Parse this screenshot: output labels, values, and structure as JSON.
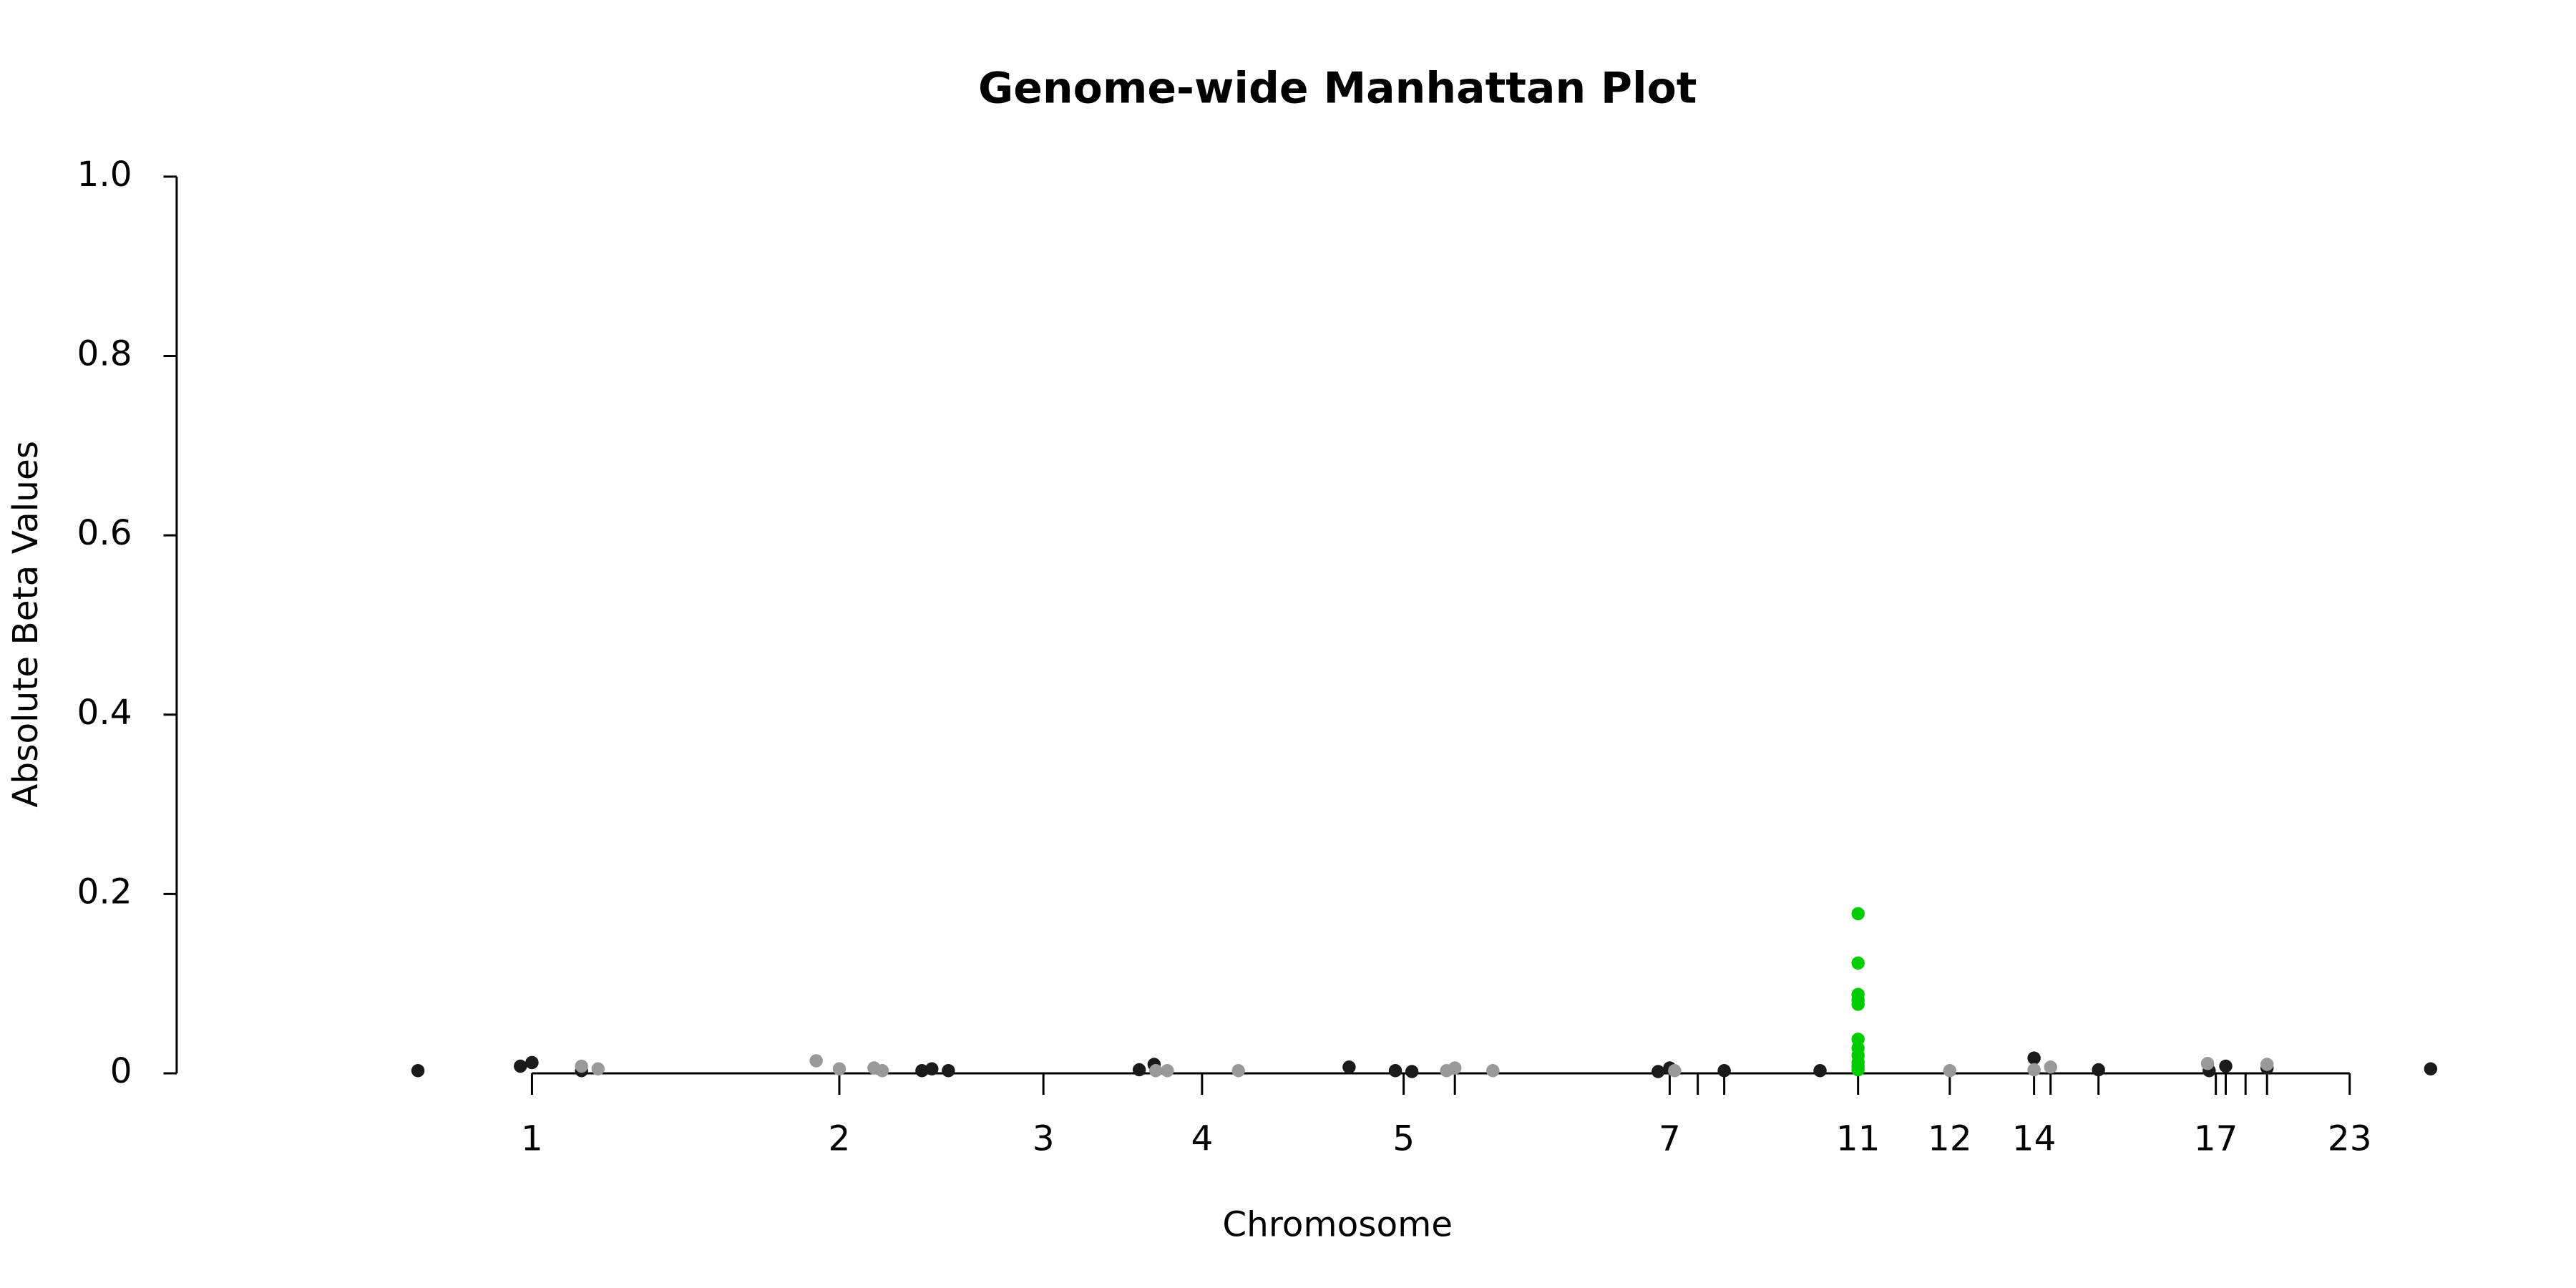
{
  "chart_data": {
    "type": "scatter",
    "title": "Genome-wide Manhattan Plot",
    "x_label": "Chromosome",
    "y_label": "Absolute Beta Values",
    "xlim": [
      -3.3,
      24.74
    ],
    "ylim": [
      0,
      1.0
    ],
    "xticks": [
      {
        "value": 1,
        "label": "1"
      },
      {
        "value": 4.72,
        "label": "2"
      },
      {
        "value": 7.19,
        "label": "3"
      },
      {
        "value": 9.11,
        "label": "4"
      },
      {
        "value": 11.55,
        "label": "5"
      },
      {
        "value": 12.17,
        "label": null
      },
      {
        "value": 14.77,
        "label": "7"
      },
      {
        "value": 15.11,
        "label": null
      },
      {
        "value": 15.43,
        "label": null
      },
      {
        "value": 17.05,
        "label": "11"
      },
      {
        "value": 18.16,
        "label": "12"
      },
      {
        "value": 19.18,
        "label": "14"
      },
      {
        "value": 19.38,
        "label": null
      },
      {
        "value": 19.96,
        "label": null
      },
      {
        "value": 21.38,
        "label": "17"
      },
      {
        "value": 21.5,
        "label": null
      },
      {
        "value": 21.74,
        "label": null
      },
      {
        "value": 22.0,
        "label": null
      },
      {
        "value": 23,
        "label": "23"
      }
    ],
    "yticks": [
      0,
      0.2,
      0.4,
      0.6,
      0.8,
      {
        "value": 1.0,
        "label": "1.0"
      }
    ],
    "series": [
      {
        "color": "#1a1a1a",
        "x": [
          -0.38,
          0.86,
          1,
          1.6,
          5.72,
          5.84,
          6.04,
          8.35,
          8.53,
          10.89,
          11.45,
          11.65,
          14.63,
          14.77,
          15.43,
          16.59,
          19.18,
          19.96,
          21.3,
          21.5,
          22.0,
          23.98
        ],
        "values": [
          0.003,
          0.008,
          0.012,
          0.003,
          0.003,
          0.005,
          0.003,
          0.004,
          0.01,
          0.007,
          0.003,
          0.002,
          0.002,
          0.006,
          0.003,
          0.003,
          0.017,
          0.004,
          0.003,
          0.008,
          0.006,
          0.005
        ]
      },
      {
        "color": "#999999",
        "x": [
          1.6,
          1.8,
          4.44,
          4.72,
          5.14,
          5.24,
          8.55,
          8.69,
          9.55,
          12.07,
          12.17,
          12.63,
          14.83,
          18.16,
          19.18,
          19.38,
          21.28,
          22.0
        ],
        "values": [
          0.008,
          0.005,
          0.014,
          0.005,
          0.006,
          0.003,
          0.003,
          0.003,
          0.003,
          0.003,
          0.006,
          0.003,
          0.003,
          0.003,
          0.004,
          0.007,
          0.011,
          0.01
        ]
      },
      {
        "color": "#00cc00",
        "x": [
          17.05,
          17.05,
          17.05,
          17.05,
          17.05,
          17.05,
          17.05,
          17.05,
          17.05,
          17.05,
          17.05
        ],
        "values": [
          0.178,
          0.123,
          0.088,
          0.082,
          0.077,
          0.038,
          0.028,
          0.02,
          0.012,
          0.008,
          0.004
        ]
      }
    ]
  }
}
